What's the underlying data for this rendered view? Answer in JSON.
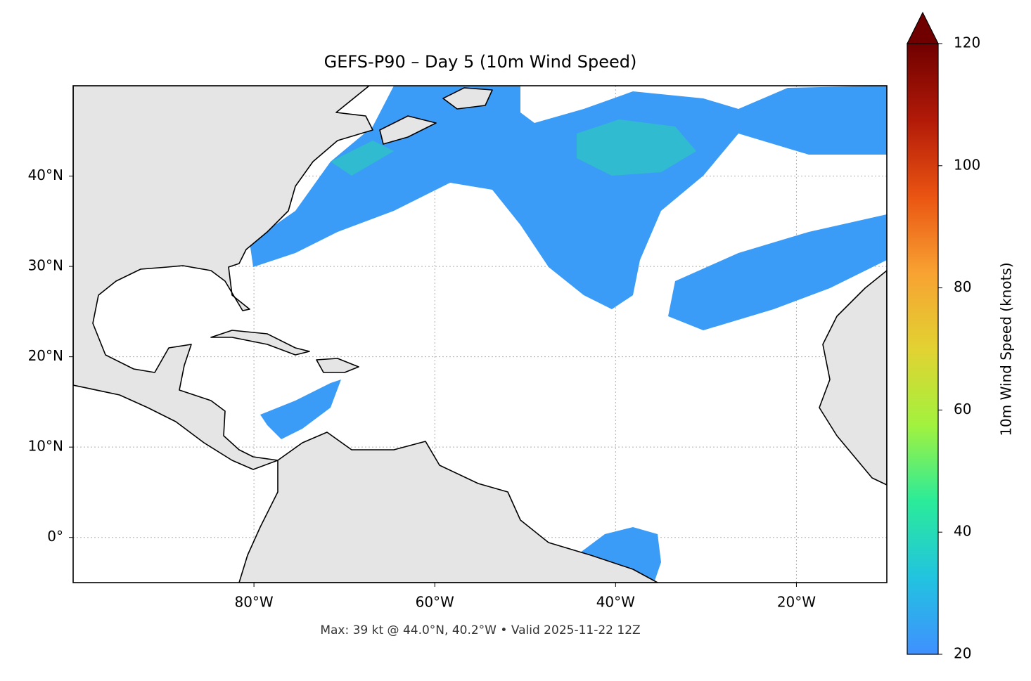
{
  "title": "GEFS-P90 – Day 5 (10m Wind Speed)",
  "footnote": "Max: 39 kt @ 44.0°N, 40.2°W • Valid 2025-11-22 12Z",
  "map": {
    "lonlim": [
      -100,
      -10
    ],
    "latlim": [
      -5,
      50
    ],
    "lon_ticks": [
      {
        "value": -80,
        "label": "80°W"
      },
      {
        "value": -60,
        "label": "60°W"
      },
      {
        "value": -40,
        "label": "40°W"
      },
      {
        "value": -20,
        "label": "20°W"
      }
    ],
    "lat_ticks": [
      {
        "value": 0,
        "label": "0°"
      },
      {
        "value": 10,
        "label": "10°N"
      },
      {
        "value": 20,
        "label": "20°N"
      },
      {
        "value": 30,
        "label": "30°N"
      },
      {
        "value": 40,
        "label": "40°N"
      }
    ]
  },
  "colorbar": {
    "label": "10m Wind Speed (knots)",
    "lim": [
      20,
      120
    ],
    "ticks": [
      20,
      40,
      60,
      80,
      100,
      120
    ],
    "colors": [
      "#4090ff",
      "#22c3e0",
      "#2aeb9a",
      "#a2f23e",
      "#e2d232",
      "#f8a232",
      "#ea5412",
      "#b21a08",
      "#700000"
    ]
  }
}
